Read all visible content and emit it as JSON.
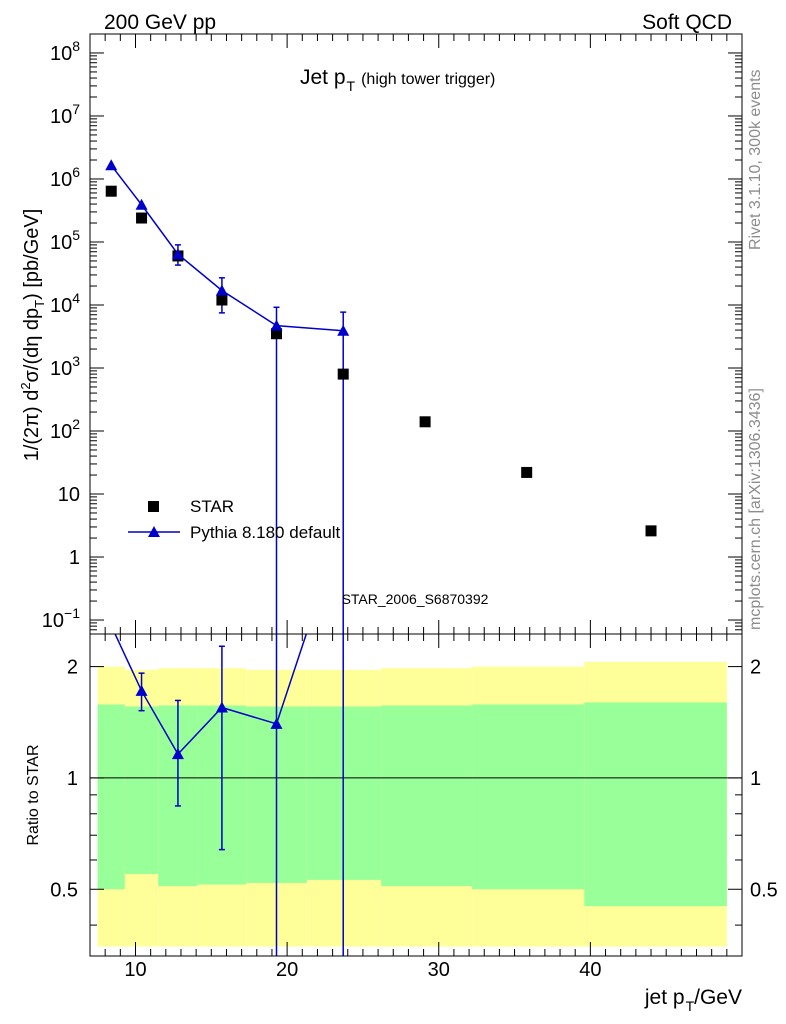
{
  "header": {
    "left": "200 GeV pp",
    "right": "Soft QCD"
  },
  "side_labels": {
    "rivet": "Rivet 3.1.10,  300k events",
    "mcplots": "mcplots.cern.ch [arXiv:1306.3436]"
  },
  "watermark": "STAR_2006_S6870392",
  "colors": {
    "mc": "#0000cc",
    "data": "#000000",
    "band_outer": "#ffff99",
    "band_inner": "#99ff99",
    "watermark": "#8c8c8c"
  },
  "chart_data": [
    {
      "type": "scatter",
      "title_main": "Jet p",
      "title_sub": "T",
      "title_extra": "(high tower trigger)",
      "ylabel": "1/(2π) d²σ/(dη dp_T) [pb/GeV]",
      "yscale": "log",
      "ylim": [
        0.06,
        200000000
      ],
      "xlim": [
        7.0,
        50.0
      ],
      "yticks": [
        {
          "v": 0.1,
          "base": "10",
          "exp": "−1"
        },
        {
          "v": 1,
          "text": "1"
        },
        {
          "v": 10,
          "text": "10"
        },
        {
          "v": 100,
          "base": "10",
          "exp": "2"
        },
        {
          "v": 1000,
          "base": "10",
          "exp": "3"
        },
        {
          "v": 10000,
          "base": "10",
          "exp": "4"
        },
        {
          "v": 100000,
          "base": "10",
          "exp": "5"
        },
        {
          "v": 1000000,
          "base": "10",
          "exp": "6"
        },
        {
          "v": 10000000,
          "base": "10",
          "exp": "7"
        },
        {
          "v": 100000000,
          "base": "10",
          "exp": "8"
        }
      ],
      "legend": {
        "position": "lower-left",
        "entries": [
          "STAR",
          "Pythia 8.180 default"
        ]
      },
      "series": [
        {
          "name": "STAR",
          "marker": "square",
          "x": [
            8.4,
            10.4,
            12.8,
            15.7,
            19.3,
            23.7,
            29.1,
            35.8,
            44.0
          ],
          "y": [
            640000,
            240000,
            60000,
            12000,
            3500,
            800,
            140,
            22,
            2.6
          ]
        },
        {
          "name": "Pythia 8.180 default",
          "marker": "triangle",
          "x": [
            8.4,
            10.4,
            12.8,
            15.7,
            19.3,
            23.7
          ],
          "y": [
            1650000,
            390000,
            64000,
            17000,
            4700,
            3900
          ],
          "ylow": [
            1650000,
            390000,
            43000,
            7500,
            0.01,
            0.01
          ],
          "yhigh": [
            1650000,
            390000,
            90000,
            27000,
            9200,
            7700
          ]
        }
      ]
    },
    {
      "type": "line",
      "ylabel": "Ratio to STAR",
      "yscale": "log",
      "ylim": [
        0.33,
        2.45
      ],
      "xlim": [
        7.0,
        50.0
      ],
      "xlabel_main": "jet p",
      "xlabel_sub": "T",
      "xlabel_unit": "/GeV",
      "xticks": [
        10,
        20,
        30,
        40
      ],
      "yticks": [
        0.5,
        1,
        2
      ],
      "bands": {
        "edges": [
          7.5,
          9.3,
          11.5,
          14.1,
          17.3,
          21.3,
          26.2,
          32.2,
          39.6,
          49.0
        ],
        "outer_low": [
          0.35,
          0.35,
          0.35,
          0.35,
          0.35,
          0.35,
          0.35,
          0.35,
          0.35
        ],
        "outer_high": [
          2.0,
          1.96,
          1.98,
          1.98,
          1.96,
          1.96,
          1.98,
          2.0,
          2.06
        ],
        "inner_low": [
          0.5,
          0.55,
          0.51,
          0.515,
          0.52,
          0.53,
          0.51,
          0.5,
          0.45
        ],
        "inner_high": [
          1.58,
          1.56,
          1.57,
          1.57,
          1.56,
          1.56,
          1.57,
          1.58,
          1.6
        ]
      },
      "series": [
        {
          "name": "Pythia 8.180 default",
          "x": [
            8.4,
            10.4,
            12.8,
            15.7,
            19.3,
            23.7
          ],
          "y": [
            2.58,
            1.72,
            1.16,
            1.55,
            1.4,
            4.9
          ],
          "ylow": [
            2.58,
            1.52,
            0.84,
            0.64,
            0.2,
            0.2
          ],
          "yhigh": [
            2.58,
            1.92,
            1.62,
            2.27,
            2.6,
            9.6
          ]
        }
      ]
    }
  ]
}
